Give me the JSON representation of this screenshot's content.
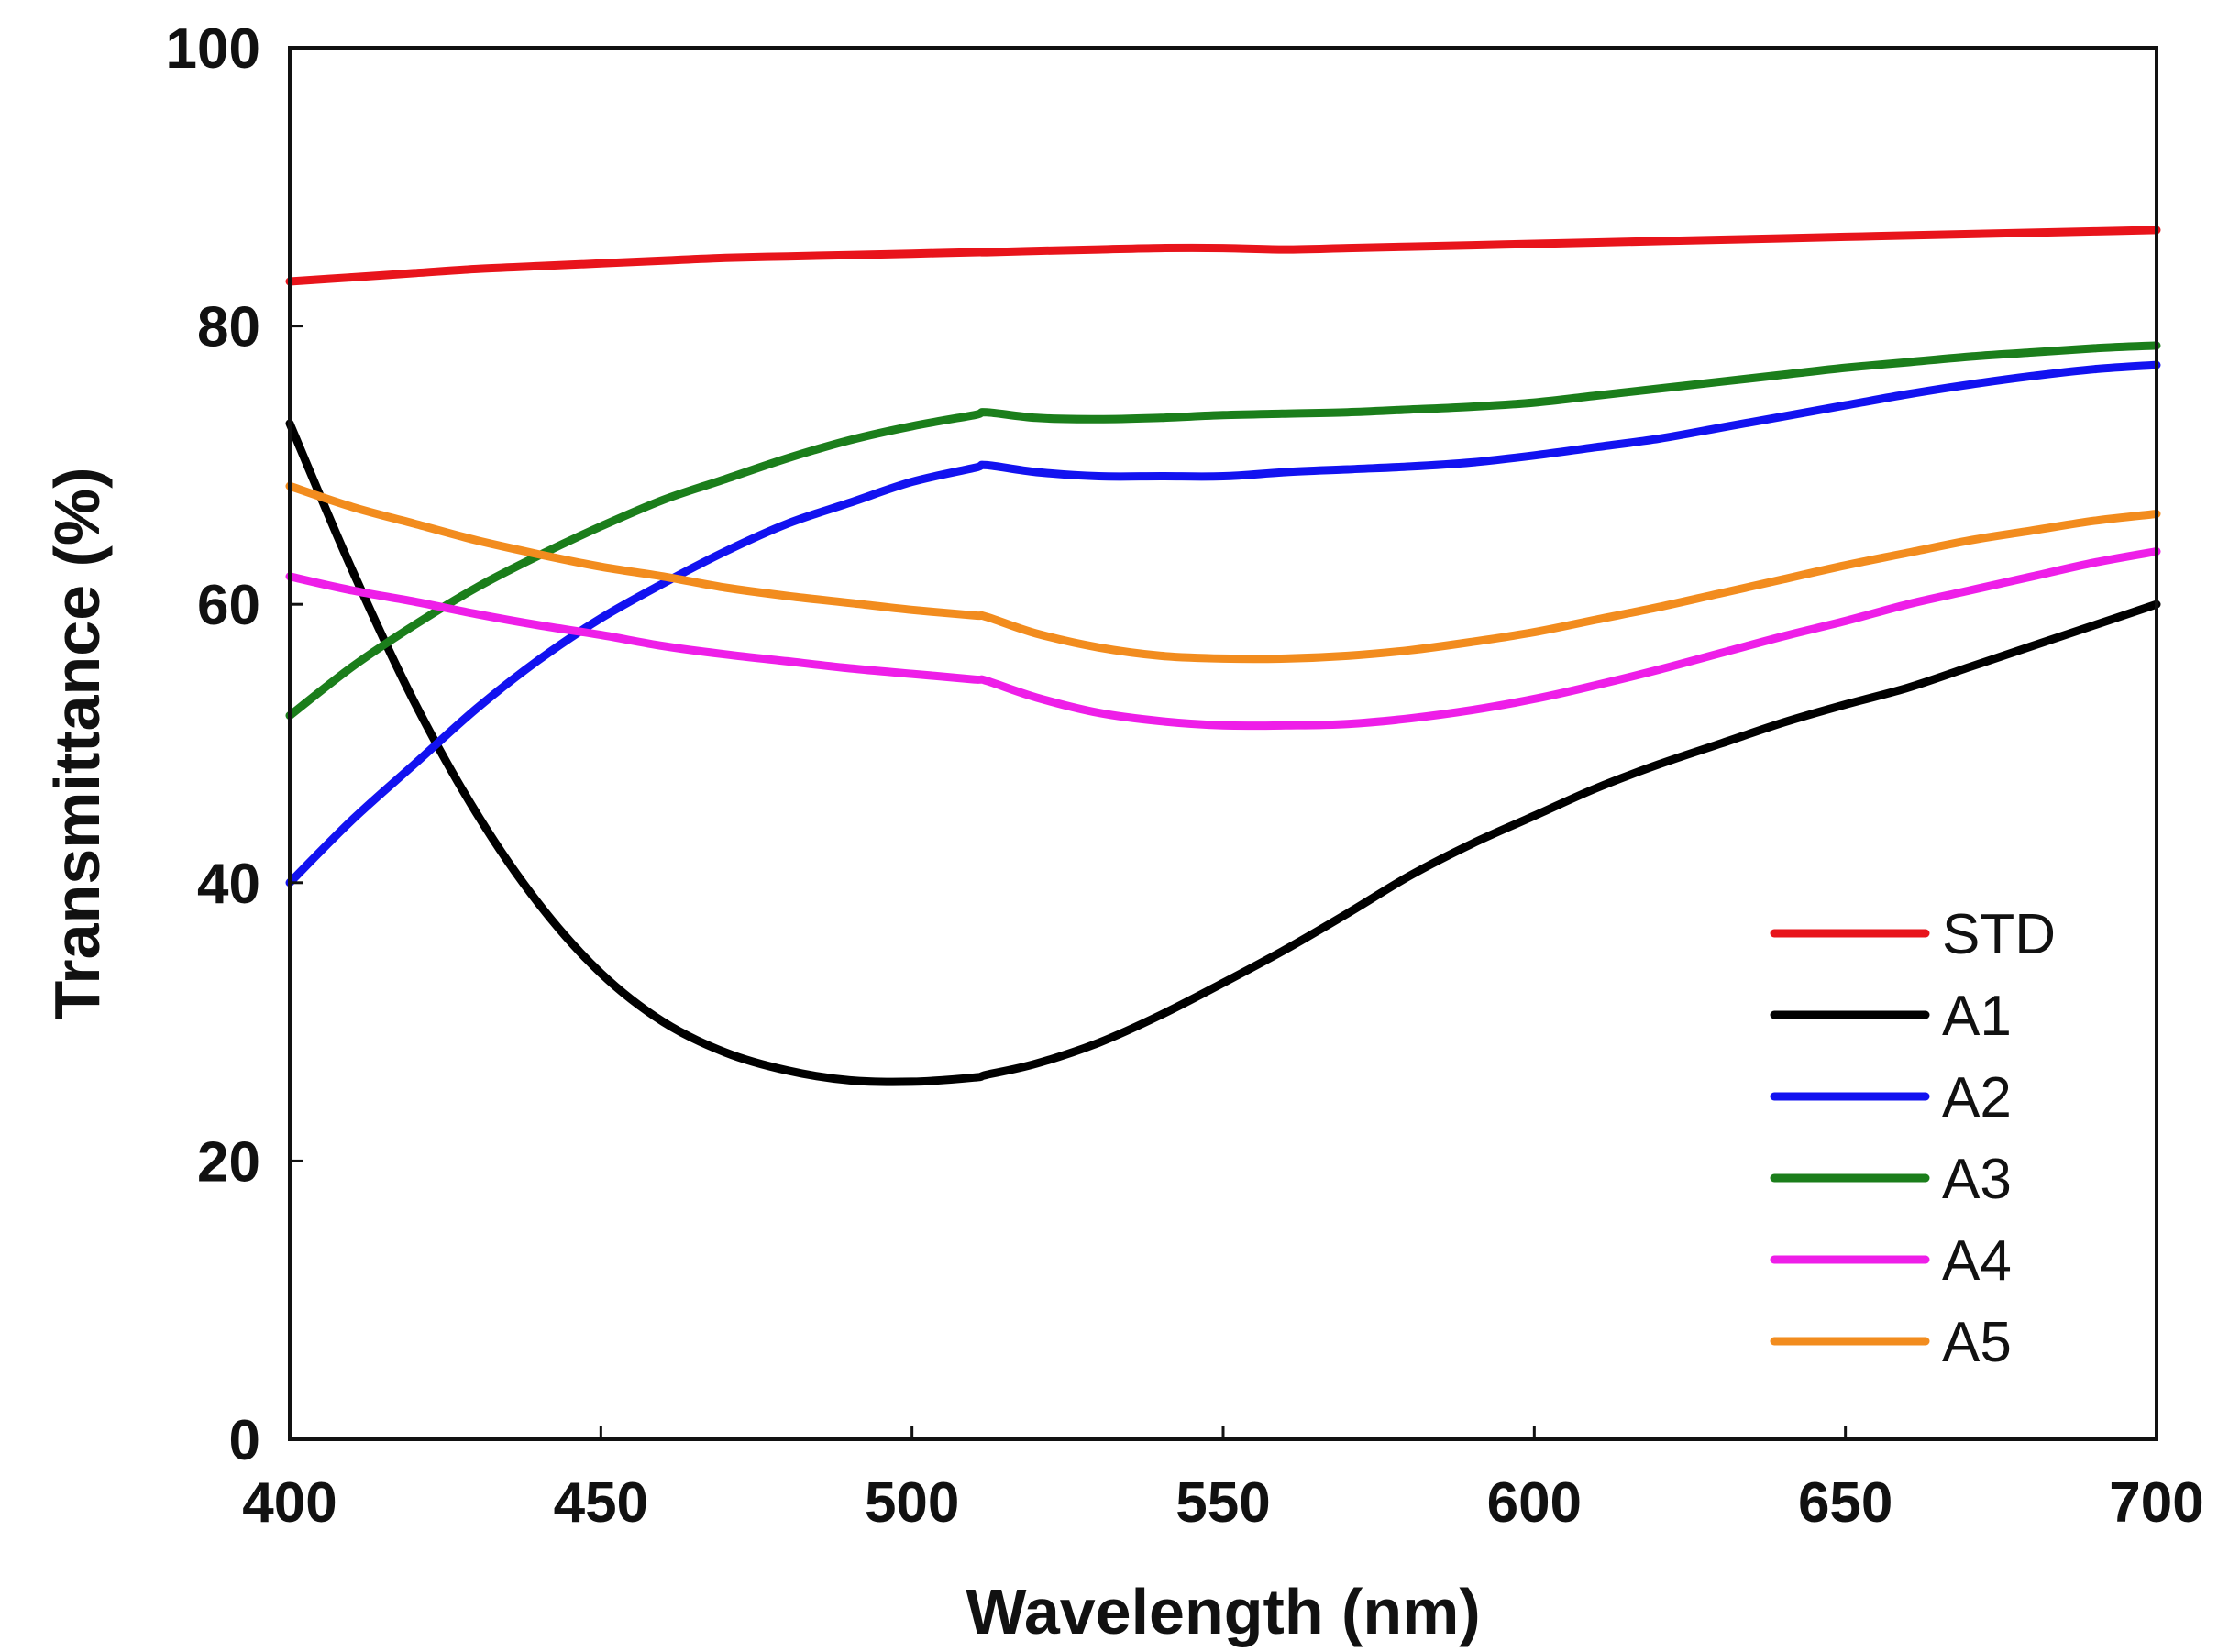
{
  "chart_data": {
    "type": "line",
    "title": "",
    "xlabel": "Wavelength (nm)",
    "ylabel": "Transmittance (%)",
    "xlim": [
      400,
      700
    ],
    "ylim": [
      0,
      100
    ],
    "xticks": [
      400,
      450,
      500,
      550,
      600,
      650,
      700
    ],
    "yticks": [
      0,
      20,
      40,
      60,
      80,
      100
    ],
    "grid": false,
    "legend_position": "bottom-right",
    "x": [
      400,
      410,
      420,
      430,
      440,
      450,
      460,
      470,
      480,
      490,
      500,
      510,
      512,
      520,
      530,
      540,
      550,
      560,
      570,
      580,
      590,
      600,
      610,
      620,
      630,
      640,
      650,
      660,
      670,
      680,
      690,
      700
    ],
    "series": [
      {
        "name": "STD",
        "color": "#e8141b",
        "values": [
          83.2,
          83.5,
          83.8,
          84.1,
          84.3,
          84.5,
          84.7,
          84.9,
          85.0,
          85.1,
          85.2,
          85.3,
          85.3,
          85.4,
          85.5,
          85.6,
          85.6,
          85.5,
          85.6,
          85.7,
          85.8,
          85.9,
          86.0,
          86.1,
          86.2,
          86.3,
          86.4,
          86.5,
          86.6,
          86.7,
          86.8,
          86.9
        ]
      },
      {
        "name": "A1",
        "color": "#000000",
        "values": [
          73.0,
          62.5,
          53.0,
          45.0,
          38.5,
          33.5,
          30.0,
          27.8,
          26.5,
          25.8,
          25.7,
          26.0,
          26.2,
          27.0,
          28.5,
          30.5,
          32.8,
          35.2,
          37.8,
          40.5,
          42.8,
          44.8,
          46.8,
          48.5,
          50.0,
          51.5,
          52.8,
          54.0,
          55.5,
          57.0,
          58.5,
          60.0
        ]
      },
      {
        "name": "A2",
        "color": "#1212f0",
        "values": [
          40.0,
          44.5,
          48.5,
          52.5,
          56.0,
          59.0,
          61.5,
          63.8,
          65.8,
          67.3,
          68.8,
          69.8,
          70.0,
          69.5,
          69.2,
          69.2,
          69.2,
          69.5,
          69.7,
          69.9,
          70.2,
          70.7,
          71.3,
          71.9,
          72.7,
          73.5,
          74.3,
          75.1,
          75.8,
          76.4,
          76.9,
          77.2
        ]
      },
      {
        "name": "A3",
        "color": "#1b7e1b",
        "values": [
          52.0,
          55.5,
          58.5,
          61.2,
          63.5,
          65.6,
          67.5,
          69.0,
          70.5,
          71.8,
          72.8,
          73.6,
          73.8,
          73.4,
          73.3,
          73.4,
          73.6,
          73.7,
          73.8,
          74.0,
          74.2,
          74.5,
          75.0,
          75.5,
          76.0,
          76.5,
          77.0,
          77.4,
          77.8,
          78.1,
          78.4,
          78.6
        ]
      },
      {
        "name": "A4",
        "color": "#ee1ee8",
        "values": [
          62.0,
          61.0,
          60.2,
          59.3,
          58.5,
          57.8,
          57.0,
          56.4,
          55.9,
          55.4,
          55.0,
          54.6,
          54.5,
          53.3,
          52.2,
          51.6,
          51.3,
          51.3,
          51.4,
          51.8,
          52.4,
          53.2,
          54.2,
          55.3,
          56.5,
          57.7,
          58.8,
          60.0,
          61.0,
          62.0,
          63.0,
          63.8
        ]
      },
      {
        "name": "A5",
        "color": "#f28c1e",
        "values": [
          68.5,
          67.0,
          65.8,
          64.6,
          63.6,
          62.7,
          62.0,
          61.2,
          60.6,
          60.1,
          59.6,
          59.2,
          59.1,
          57.9,
          56.9,
          56.3,
          56.1,
          56.1,
          56.3,
          56.7,
          57.3,
          58.0,
          58.9,
          59.8,
          60.8,
          61.8,
          62.8,
          63.7,
          64.6,
          65.3,
          66.0,
          66.5
        ]
      }
    ]
  }
}
